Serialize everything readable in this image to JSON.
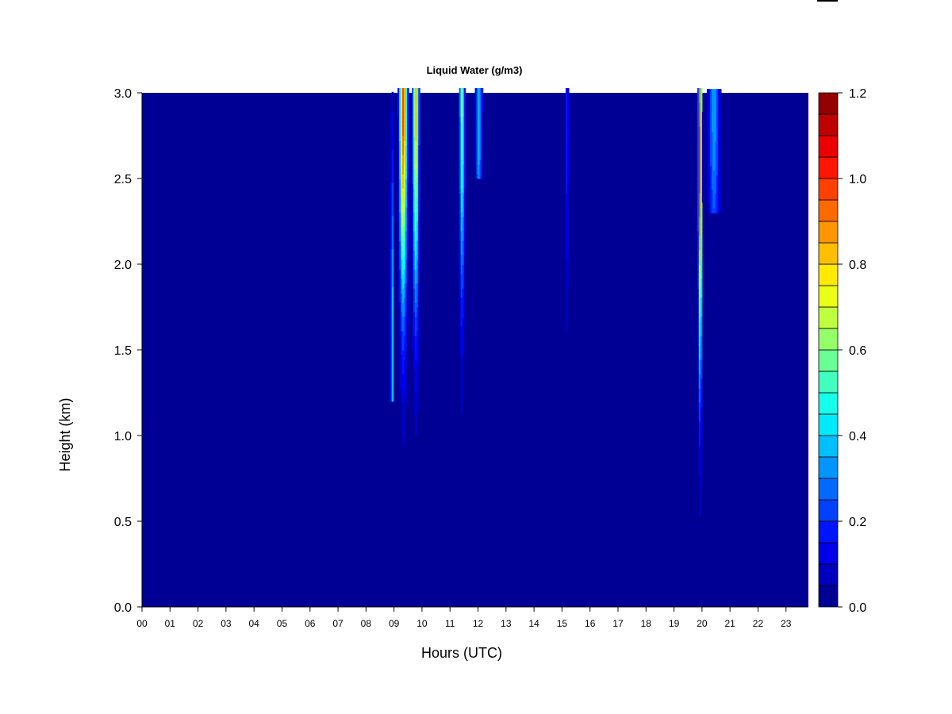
{
  "chart_data": {
    "type": "heatmap",
    "title": "Liquid Water (g/m3)",
    "xlabel": "Hours (UTC)",
    "ylabel": "Height (km)",
    "xlim": [
      0,
      23.8
    ],
    "ylim": [
      0.0,
      3.0
    ],
    "x_ticks": [
      "00",
      "01",
      "02",
      "03",
      "04",
      "05",
      "06",
      "07",
      "08",
      "09",
      "10",
      "11",
      "12",
      "13",
      "14",
      "15",
      "16",
      "17",
      "18",
      "19",
      "20",
      "21",
      "22",
      "23"
    ],
    "y_ticks": [
      "0.0",
      "0.5",
      "1.0",
      "1.5",
      "2.0",
      "2.5",
      "3.0"
    ],
    "colorbar": {
      "range": [
        0.0,
        1.2
      ],
      "step": 0.05,
      "tick_labels": [
        "0.0",
        "0.2",
        "0.4",
        "0.6",
        "0.8",
        "1.0",
        "1.2"
      ],
      "colormap": "jet"
    },
    "background_value": 0.0,
    "features": [
      {
        "hour": 8.9,
        "width": 0.06,
        "peak": 0.45,
        "peak_height": 1.5,
        "bottom": 1.2,
        "top": 3.0
      },
      {
        "hour": 9.3,
        "width": 0.18,
        "peak": 1.0,
        "peak_height": 3.0,
        "bottom": 0.0,
        "top": 3.0
      },
      {
        "hour": 9.75,
        "width": 0.14,
        "peak": 0.85,
        "peak_height": 3.0,
        "bottom": 0.0,
        "top": 3.0
      },
      {
        "hour": 11.4,
        "width": 0.12,
        "peak": 0.6,
        "peak_height": 3.0,
        "bottom": 0.0,
        "top": 3.0
      },
      {
        "hour": 12.0,
        "width": 0.14,
        "peak": 0.4,
        "peak_height": 3.0,
        "bottom": 2.5,
        "top": 3.0
      },
      {
        "hour": 15.15,
        "width": 0.05,
        "peak": 0.3,
        "peak_height": 3.0,
        "bottom": 1.0,
        "top": 3.0
      },
      {
        "hour": 19.9,
        "width": 0.08,
        "peak": 1.1,
        "peak_height": 2.6,
        "bottom": 0.0,
        "top": 3.0
      },
      {
        "hour": 20.4,
        "width": 0.25,
        "peak": 0.35,
        "peak_height": 3.0,
        "bottom": 2.3,
        "top": 3.0
      }
    ]
  }
}
